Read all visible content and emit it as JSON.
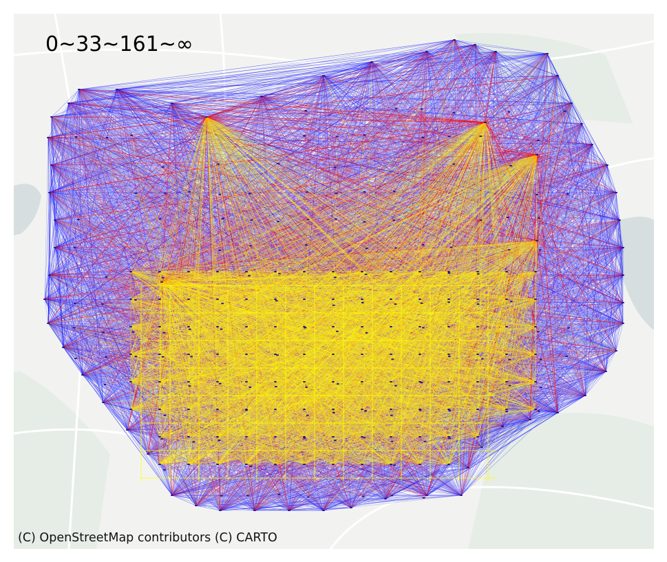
{
  "map": {
    "legend_label": "0~33~161~∞",
    "attribution": "(C) OpenStreetMap contributors (C) CARTO",
    "basemap": "light-gray",
    "layers": [
      {
        "name": "flow-lines-low",
        "color": "#0000ff",
        "range": "0~33"
      },
      {
        "name": "flow-lines-mid",
        "color": "#ff0000",
        "range": "33~161"
      },
      {
        "name": "flow-lines-high",
        "color": "#ffff00",
        "range": "161~∞"
      }
    ],
    "colors": {
      "land": "#f2f3f0",
      "water": "#d7dee0",
      "green": "#e6ede6",
      "road": "#ffffff"
    }
  }
}
